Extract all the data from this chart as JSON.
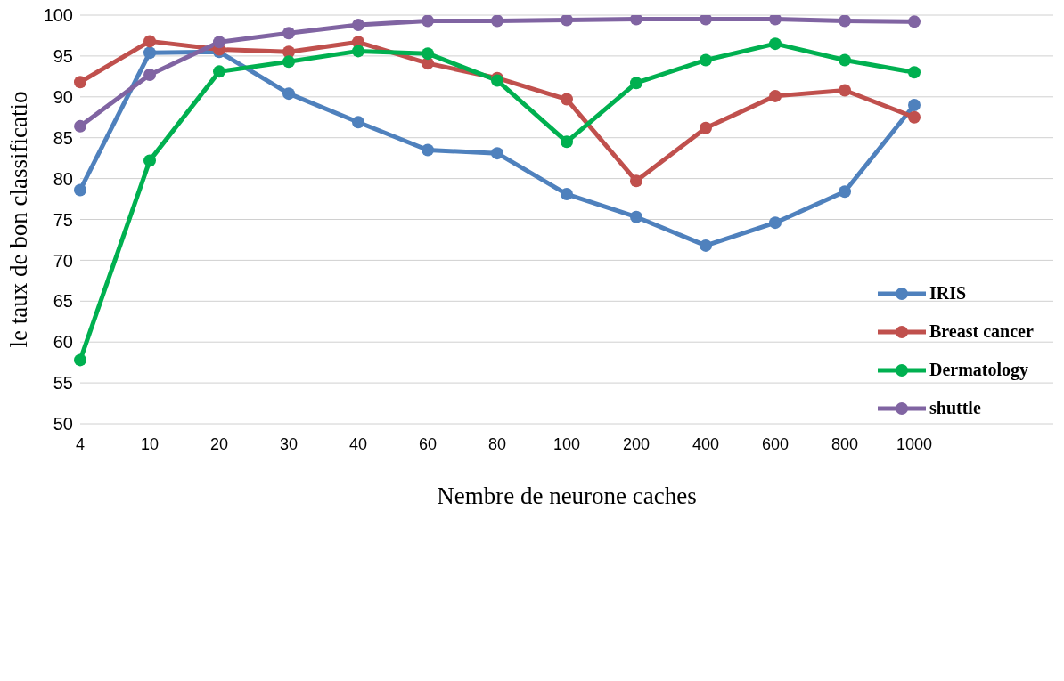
{
  "chart_data": {
    "type": "line",
    "xlabel": "Nembre de neurone caches",
    "ylabel": "le taux de bon classificatio",
    "categories": [
      "4",
      "10",
      "20",
      "30",
      "40",
      "60",
      "80",
      "100",
      "200",
      "400",
      "600",
      "800",
      "1000",
      null,
      null
    ],
    "series": [
      {
        "name": "IRIS",
        "color": "#4f81bd",
        "values": [
          78.6,
          95.4,
          95.5,
          90.4,
          86.9,
          83.5,
          83.1,
          78.1,
          75.3,
          71.8,
          74.6,
          78.4,
          89.0,
          null,
          null
        ]
      },
      {
        "name": "Breast cancer",
        "color": "#c0504d",
        "values": [
          91.8,
          96.8,
          95.8,
          95.5,
          96.7,
          94.1,
          92.3,
          89.7,
          79.7,
          86.2,
          90.1,
          90.8,
          87.5,
          null,
          null
        ]
      },
      {
        "name": "Dermatology",
        "color": "#00b050",
        "values": [
          57.8,
          82.2,
          93.1,
          94.3,
          95.6,
          95.3,
          92.0,
          84.5,
          91.7,
          94.5,
          96.5,
          94.5,
          93.0,
          null,
          null
        ]
      },
      {
        "name": "shuttle",
        "color": "#8064a2",
        "values": [
          86.4,
          92.7,
          96.7,
          97.8,
          98.8,
          99.3,
          99.3,
          99.4,
          99.5,
          99.5,
          99.5,
          99.3,
          99.2,
          null,
          null
        ]
      }
    ],
    "ylim": [
      50,
      100
    ],
    "yticks": [
      50,
      55,
      60,
      65,
      70,
      75,
      80,
      85,
      90,
      95,
      100
    ],
    "grid": "y",
    "legend": "right",
    "marker": "circle",
    "line_style": "solid"
  }
}
